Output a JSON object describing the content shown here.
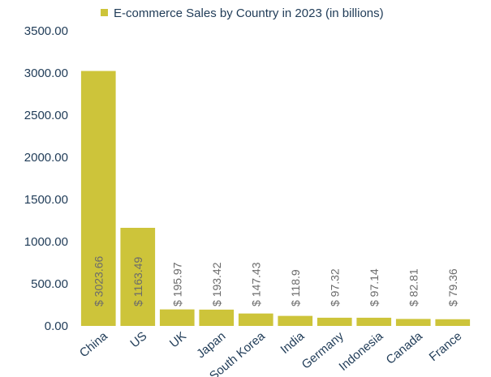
{
  "chart_data": {
    "type": "bar",
    "legend": {
      "label": "E-commerce Sales by Country in 2023 (in billions)",
      "position": "top"
    },
    "categories": [
      "China",
      "US",
      "UK",
      "Japan",
      "South Korea",
      "India",
      "Germany",
      "Indonesia",
      "Canada",
      "France"
    ],
    "values": [
      3023.66,
      1163.49,
      195.97,
      193.42,
      147.43,
      118.9,
      97.32,
      97.14,
      82.81,
      79.36
    ],
    "data_labels": [
      "$ 3023.66",
      "$ 1163.49",
      "$ 195.97",
      "$ 193.42",
      "$ 147.43",
      "$ 118.9",
      "$ 97.32",
      "$ 97.14",
      "$ 82.81",
      "$ 79.36"
    ],
    "y_ticks": [
      "0.00",
      "500.00",
      "1000.00",
      "1500.00",
      "2000.00",
      "2500.00",
      "3000.00",
      "3500.00"
    ],
    "ylim": [
      0,
      3500
    ],
    "grid": false,
    "colors": {
      "bar": "#cdc43a",
      "text": "#1f3b57",
      "data_label": "#6b6b6b"
    }
  }
}
